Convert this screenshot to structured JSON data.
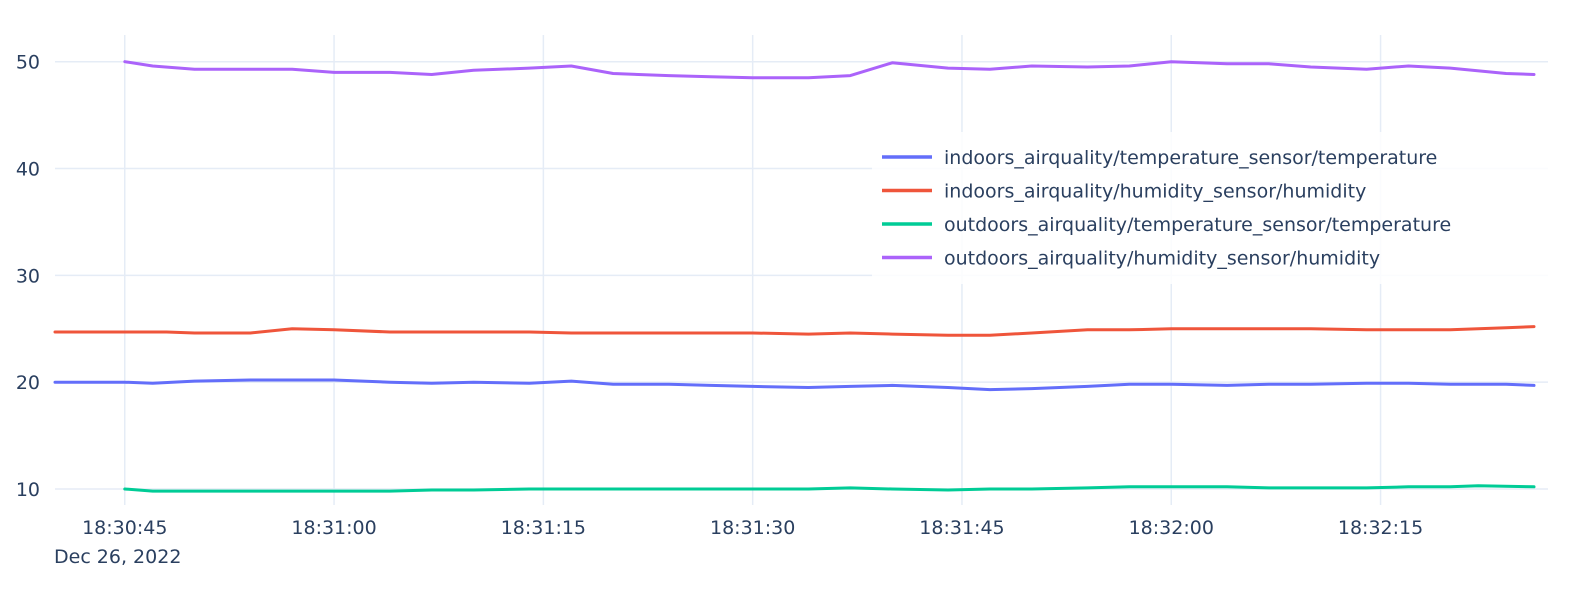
{
  "chart_data": {
    "type": "line",
    "title": "",
    "xlabel": "",
    "ylabel": "",
    "date_label": "Dec 26, 2022",
    "x_ticks": [
      "18:30:45",
      "18:31:00",
      "18:31:15",
      "18:31:30",
      "18:31:45",
      "18:32:00",
      "18:32:15"
    ],
    "x_range": [
      "18:30:40",
      "18:32:27"
    ],
    "y_ticks": [
      10,
      20,
      30,
      40,
      50
    ],
    "ylim": [
      8.5,
      52.5
    ],
    "grid": true,
    "legend_position": "top-right",
    "series": [
      {
        "name": "indoors_airquality/temperature_sensor/temperature",
        "color": "#636efa",
        "x": [
          "18:30:40",
          "18:30:45",
          "18:30:47",
          "18:30:50",
          "18:30:54",
          "18:30:58",
          "18:31:00",
          "18:31:04",
          "18:31:07",
          "18:31:10",
          "18:31:14",
          "18:31:17",
          "18:31:20",
          "18:31:24",
          "18:31:27",
          "18:31:30",
          "18:31:34",
          "18:31:37",
          "18:31:40",
          "18:31:44",
          "18:31:47",
          "18:31:50",
          "18:31:54",
          "18:31:57",
          "18:32:00",
          "18:32:04",
          "18:32:07",
          "18:32:10",
          "18:32:14",
          "18:32:17",
          "18:32:20",
          "18:32:24",
          "18:32:26"
        ],
        "y": [
          20.0,
          20.0,
          19.9,
          20.1,
          20.2,
          20.2,
          20.2,
          20.0,
          19.9,
          20.0,
          19.9,
          20.1,
          19.8,
          19.8,
          19.7,
          19.6,
          19.5,
          19.6,
          19.7,
          19.5,
          19.3,
          19.4,
          19.6,
          19.8,
          19.8,
          19.7,
          19.8,
          19.8,
          19.9,
          19.9,
          19.8,
          19.8,
          19.7
        ]
      },
      {
        "name": "indoors_airquality/humidity_sensor/humidity",
        "color": "#ef553b",
        "x": [
          "18:30:40",
          "18:30:45",
          "18:30:48",
          "18:30:50",
          "18:30:54",
          "18:30:57",
          "18:31:00",
          "18:31:04",
          "18:31:07",
          "18:31:10",
          "18:31:14",
          "18:31:17",
          "18:31:20",
          "18:31:24",
          "18:31:27",
          "18:31:30",
          "18:31:34",
          "18:31:37",
          "18:31:40",
          "18:31:44",
          "18:31:47",
          "18:31:50",
          "18:31:54",
          "18:31:57",
          "18:32:00",
          "18:32:04",
          "18:32:07",
          "18:32:10",
          "18:32:14",
          "18:32:17",
          "18:32:20",
          "18:32:24",
          "18:32:26"
        ],
        "y": [
          24.7,
          24.7,
          24.7,
          24.6,
          24.6,
          25.0,
          24.9,
          24.7,
          24.7,
          24.7,
          24.7,
          24.6,
          24.6,
          24.6,
          24.6,
          24.6,
          24.5,
          24.6,
          24.5,
          24.4,
          24.4,
          24.6,
          24.9,
          24.9,
          25.0,
          25.0,
          25.0,
          25.0,
          24.9,
          24.9,
          24.9,
          25.1,
          25.2
        ]
      },
      {
        "name": "outdoors_airquality/temperature_sensor/temperature",
        "color": "#00cc96",
        "x": [
          "18:30:45",
          "18:30:47",
          "18:30:50",
          "18:30:54",
          "18:30:57",
          "18:31:00",
          "18:31:04",
          "18:31:07",
          "18:31:10",
          "18:31:14",
          "18:31:17",
          "18:31:20",
          "18:31:24",
          "18:31:27",
          "18:31:30",
          "18:31:34",
          "18:31:37",
          "18:31:40",
          "18:31:44",
          "18:31:47",
          "18:31:50",
          "18:31:54",
          "18:31:57",
          "18:32:00",
          "18:32:04",
          "18:32:07",
          "18:32:10",
          "18:32:14",
          "18:32:17",
          "18:32:20",
          "18:32:22",
          "18:32:26"
        ],
        "y": [
          10.0,
          9.8,
          9.8,
          9.8,
          9.8,
          9.8,
          9.8,
          9.9,
          9.9,
          10.0,
          10.0,
          10.0,
          10.0,
          10.0,
          10.0,
          10.0,
          10.1,
          10.0,
          9.9,
          10.0,
          10.0,
          10.1,
          10.2,
          10.2,
          10.2,
          10.1,
          10.1,
          10.1,
          10.2,
          10.2,
          10.3,
          10.2
        ]
      },
      {
        "name": "outdoors_airquality/humidity_sensor/humidity",
        "color": "#ab63fa",
        "x": [
          "18:30:45",
          "18:30:47",
          "18:30:50",
          "18:30:54",
          "18:30:57",
          "18:31:00",
          "18:31:04",
          "18:31:07",
          "18:31:10",
          "18:31:14",
          "18:31:17",
          "18:31:20",
          "18:31:24",
          "18:31:27",
          "18:31:30",
          "18:31:34",
          "18:31:37",
          "18:31:40",
          "18:31:44",
          "18:31:47",
          "18:31:50",
          "18:31:54",
          "18:31:57",
          "18:32:00",
          "18:32:04",
          "18:32:07",
          "18:32:10",
          "18:32:14",
          "18:32:17",
          "18:32:20",
          "18:32:24",
          "18:32:26"
        ],
        "y": [
          50.0,
          49.6,
          49.3,
          49.3,
          49.3,
          49.0,
          49.0,
          48.8,
          49.2,
          49.4,
          49.6,
          48.9,
          48.7,
          48.6,
          48.5,
          48.5,
          48.7,
          49.9,
          49.4,
          49.3,
          49.6,
          49.5,
          49.6,
          50.0,
          49.8,
          49.8,
          49.5,
          49.3,
          49.6,
          49.4,
          48.9,
          48.8
        ]
      }
    ]
  }
}
